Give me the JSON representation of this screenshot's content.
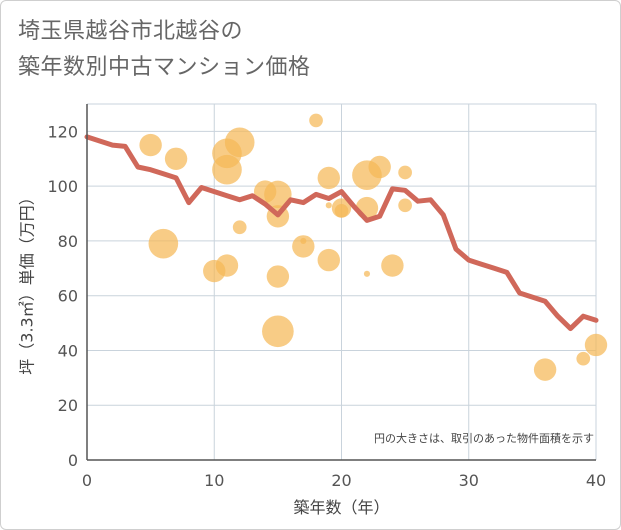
{
  "chart_data": {
    "type": "scatter",
    "title_lines": [
      "埼玉県越谷市北越谷の",
      "築年数別中古マンション価格"
    ],
    "xlabel": "築年数（年）",
    "ylabel": "坪（3.3㎡）単価（万円）",
    "xlim": [
      0,
      40
    ],
    "ylim": [
      0,
      130
    ],
    "xticks": [
      0,
      10,
      20,
      30,
      40
    ],
    "yticks": [
      0,
      20,
      40,
      60,
      80,
      100,
      120
    ],
    "grid": true,
    "note": "円の大きさは、取引のあった物件面積を示す",
    "colors": {
      "bubble": "#f5b957",
      "line": "#d0685a",
      "grid": "#c9d3dc",
      "axis": "#555555"
    },
    "bubbles": [
      {
        "x": 5,
        "y": 115,
        "size": 4
      },
      {
        "x": 6,
        "y": 79,
        "size": 7
      },
      {
        "x": 7,
        "y": 110,
        "size": 4
      },
      {
        "x": 10,
        "y": 69,
        "size": 4
      },
      {
        "x": 11,
        "y": 71,
        "size": 4
      },
      {
        "x": 11,
        "y": 106,
        "size": 7
      },
      {
        "x": 11,
        "y": 112,
        "size": 7
      },
      {
        "x": 12,
        "y": 116,
        "size": 7
      },
      {
        "x": 12,
        "y": 85,
        "size": 1.5
      },
      {
        "x": 14,
        "y": 98,
        "size": 4
      },
      {
        "x": 15,
        "y": 97,
        "size": 6
      },
      {
        "x": 15,
        "y": 89,
        "size": 4
      },
      {
        "x": 15,
        "y": 67,
        "size": 4
      },
      {
        "x": 15,
        "y": 47,
        "size": 8
      },
      {
        "x": 17,
        "y": 78,
        "size": 4
      },
      {
        "x": 17,
        "y": 80,
        "size": 0.3
      },
      {
        "x": 18,
        "y": 124,
        "size": 1.5
      },
      {
        "x": 19,
        "y": 103,
        "size": 4
      },
      {
        "x": 19,
        "y": 73,
        "size": 4
      },
      {
        "x": 19,
        "y": 93,
        "size": 0.3
      },
      {
        "x": 20,
        "y": 92,
        "size": 3
      },
      {
        "x": 20,
        "y": 91,
        "size": 1.5
      },
      {
        "x": 22,
        "y": 104,
        "size": 7
      },
      {
        "x": 22,
        "y": 92,
        "size": 4
      },
      {
        "x": 22,
        "y": 68,
        "size": 0.3
      },
      {
        "x": 23,
        "y": 107,
        "size": 4
      },
      {
        "x": 24,
        "y": 71,
        "size": 4
      },
      {
        "x": 25,
        "y": 105,
        "size": 1.5
      },
      {
        "x": 25,
        "y": 93,
        "size": 1.5
      },
      {
        "x": 36,
        "y": 33,
        "size": 4
      },
      {
        "x": 39,
        "y": 37,
        "size": 1.5
      },
      {
        "x": 40,
        "y": 42,
        "size": 4
      }
    ],
    "trend": {
      "x": [
        0,
        1,
        2,
        3,
        4,
        5,
        6,
        7,
        8,
        9,
        10,
        11,
        12,
        13,
        14,
        15,
        16,
        17,
        18,
        19,
        20,
        21,
        22,
        23,
        24,
        25,
        26,
        27,
        28,
        29,
        30,
        31,
        32,
        33,
        34,
        35,
        36,
        37,
        38,
        39,
        40
      ],
      "y": [
        118,
        116.5,
        115,
        114.5,
        107,
        106,
        104.5,
        103,
        94,
        99.5,
        98,
        96.5,
        95,
        96.5,
        93.5,
        89.5,
        95,
        94,
        97,
        95.5,
        98,
        92.5,
        87.5,
        89,
        99,
        98.5,
        94.5,
        95,
        89.5,
        77,
        73,
        71.5,
        70,
        68.5,
        61,
        59.5,
        58,
        52.5,
        48,
        52.5,
        51
      ]
    }
  }
}
